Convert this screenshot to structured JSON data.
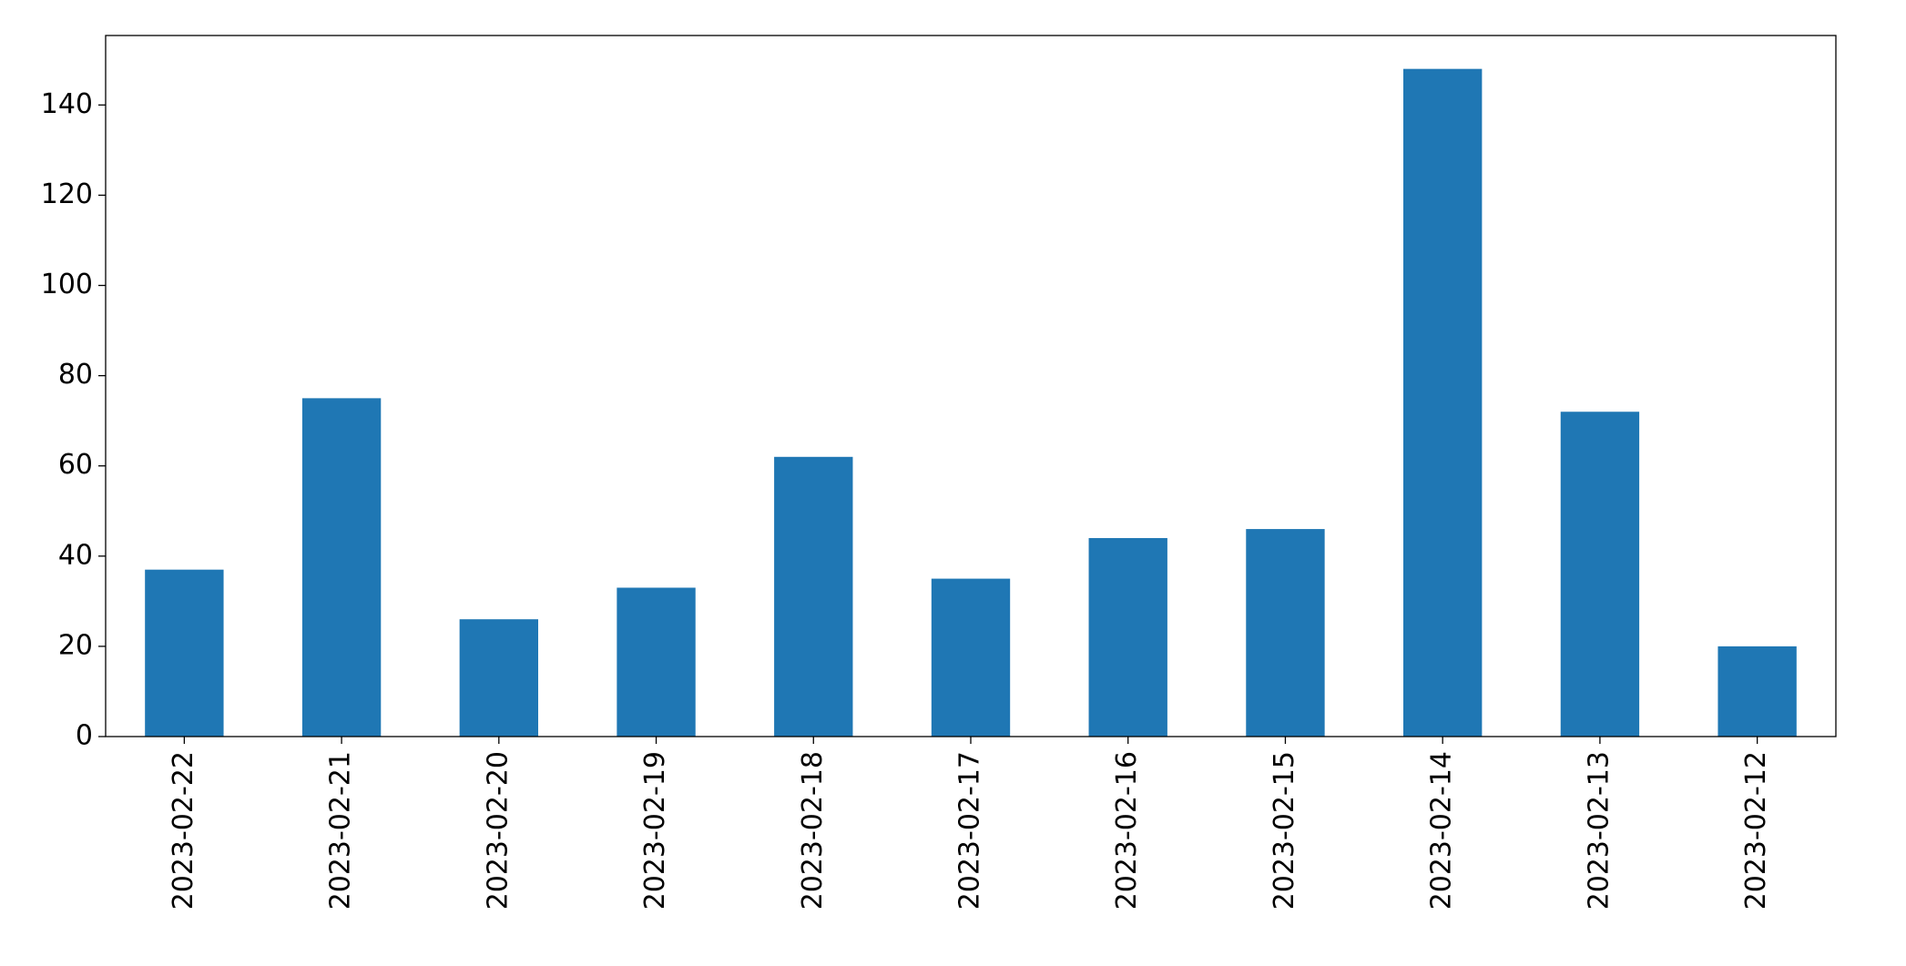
{
  "chart_data": {
    "type": "bar",
    "categories": [
      "2023-02-22",
      "2023-02-21",
      "2023-02-20",
      "2023-02-19",
      "2023-02-18",
      "2023-02-17",
      "2023-02-16",
      "2023-02-15",
      "2023-02-14",
      "2023-02-13",
      "2023-02-12"
    ],
    "values": [
      37,
      75,
      26,
      33,
      62,
      35,
      44,
      46,
      148,
      72,
      20
    ],
    "color": "#1f77b4",
    "ylim": [
      0,
      155.4
    ],
    "yticks": [
      0,
      20,
      40,
      60,
      80,
      100,
      120,
      140
    ],
    "grid": false
  }
}
